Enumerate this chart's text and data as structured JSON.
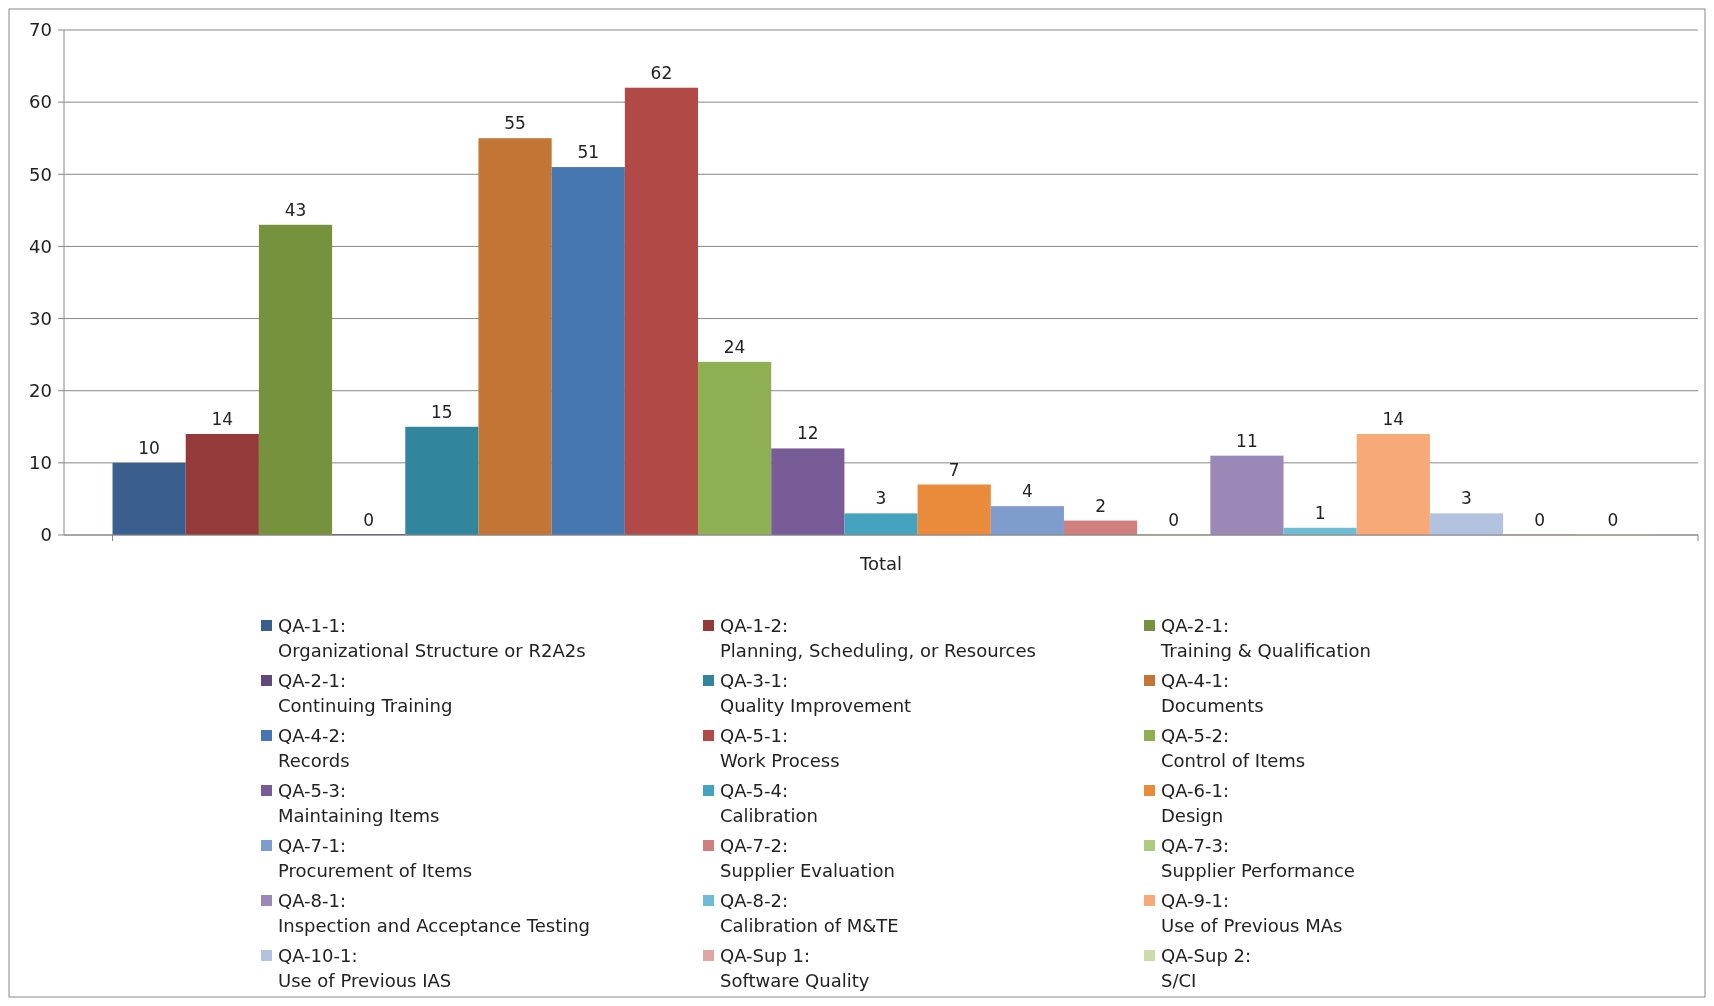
{
  "chart_data": {
    "type": "bar",
    "categories": [
      "Total"
    ],
    "ylim": [
      0,
      70
    ],
    "yticks": [
      0,
      10,
      20,
      30,
      40,
      50,
      60,
      70
    ],
    "grid": "y",
    "legend": "bottom",
    "data_labels": true,
    "series": [
      {
        "name": "QA-1-1:\nOrganizational Structure or R2A2s",
        "color": "#3a5f8f",
        "values": [
          10
        ]
      },
      {
        "name": "QA-1-2:\nPlanning, Scheduling, or Resources",
        "color": "#943a3a",
        "values": [
          14
        ]
      },
      {
        "name": "QA-2-1:\nTraining & Qualification",
        "color": "#77923c",
        "values": [
          43
        ]
      },
      {
        "name": "QA-2-1:\nContinuing Training",
        "color": "#604a7b",
        "values": [
          0
        ]
      },
      {
        "name": "QA-3-1:\nQuality Improvement",
        "color": "#31859c",
        "values": [
          15
        ]
      },
      {
        "name": "QA-4-1:\nDocuments",
        "color": "#c27535",
        "values": [
          55
        ]
      },
      {
        "name": "QA-4-2:\nRecords",
        "color": "#4677b0",
        "values": [
          51
        ]
      },
      {
        "name": "QA-5-1:\nWork Process",
        "color": "#b14947",
        "values": [
          62
        ]
      },
      {
        "name": "QA-5-2:\nControl of Items",
        "color": "#8fb052",
        "values": [
          24
        ]
      },
      {
        "name": "QA-5-3:\nMaintaining Items",
        "color": "#775c97",
        "values": [
          12
        ]
      },
      {
        "name": "QA-5-4:\nCalibration",
        "color": "#45a3bd",
        "values": [
          3
        ]
      },
      {
        "name": "QA-6-1:\nDesign",
        "color": "#ea8a3b",
        "values": [
          7
        ]
      },
      {
        "name": "QA-7-1:\nProcurement of Items",
        "color": "#7f9dcc",
        "values": [
          4
        ]
      },
      {
        "name": "QA-7-2:\nSupplier Evaluation",
        "color": "#cf7f7e",
        "values": [
          2
        ]
      },
      {
        "name": "QA-7-3:\nSupplier Performance",
        "color": "#adcb7f",
        "values": [
          0
        ]
      },
      {
        "name": "QA-8-1:\nInspection and Acceptance Testing",
        "color": "#9a89b6",
        "values": [
          11
        ]
      },
      {
        "name": "QA-8-2:\nCalibration of M&TE",
        "color": "#6fbdd4",
        "values": [
          1
        ]
      },
      {
        "name": "QA-9-1:\nUse of Previous MAs",
        "color": "#f7a978",
        "values": [
          14
        ]
      },
      {
        "name": "QA-10-1:\nUse of Previous IAS",
        "color": "#b2c3e0",
        "values": [
          3
        ]
      },
      {
        "name": "QA-Sup 1:\nSoftware Quality",
        "color": "#dea6a5",
        "values": [
          0
        ]
      },
      {
        "name": "QA-Sup 2:\nS/CI",
        "color": "#c9dcaa",
        "values": [
          0
        ]
      }
    ]
  }
}
